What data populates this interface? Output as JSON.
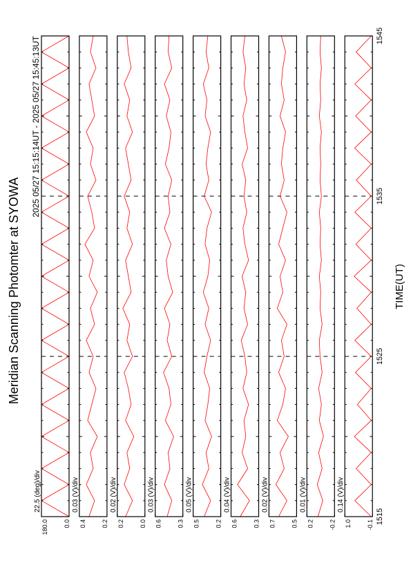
{
  "chart_data": {
    "type": "line",
    "title": "Meridian Scanning Photomter at SYOWA",
    "subtitle": "2025 05/27 15:15:14UT - 2025 05/27 15:45:13UT",
    "x_label": "TIME(UT)",
    "xlim": [
      1515,
      1545
    ],
    "xticks": [
      1515,
      1525,
      1535,
      1545
    ],
    "color": "#ff0000",
    "x": [
      1515,
      1516,
      1517,
      1518,
      1519,
      1520,
      1521,
      1522,
      1523,
      1524,
      1525,
      1526,
      1527,
      1528,
      1529,
      1530,
      1531,
      1532,
      1533,
      1534,
      1535,
      1536,
      1537,
      1538,
      1539,
      1540,
      1541,
      1542,
      1543,
      1544,
      1545
    ],
    "panels": [
      {
        "scale_label": "22.5 (deg)/div",
        "ylim": [
          0,
          180
        ],
        "yticks": [
          {
            "value": 0,
            "label": "0.0"
          },
          {
            "value": 180,
            "label": "180.0"
          }
        ],
        "values": [
          0,
          180,
          0,
          180,
          0,
          180,
          0,
          180,
          0,
          180,
          0,
          180,
          0,
          180,
          0,
          180,
          0,
          180,
          0,
          180,
          0,
          180,
          0,
          180,
          0,
          180,
          0,
          180,
          0,
          180,
          0
        ]
      },
      {
        "scale_label": "0.03 (V)/div",
        "ylim": [
          0.2,
          0.4
        ],
        "yticks": [
          0.2,
          0.4
        ],
        "values": [
          0.33,
          0.29,
          0.35,
          0.3,
          0.32,
          0.27,
          0.34,
          0.31,
          0.28,
          0.33,
          0.3,
          0.35,
          0.29,
          0.32,
          0.27,
          0.33,
          0.3,
          0.36,
          0.29,
          0.31,
          0.34,
          0.28,
          0.32,
          0.3,
          0.35,
          0.29,
          0.31,
          0.33,
          0.28,
          0.32,
          0.3
        ]
      },
      {
        "scale_label": "0.02 (V)/div",
        "ylim": [
          0.0,
          0.2
        ],
        "yticks": [
          {
            "value": 0,
            "label": "0.0"
          },
          0.2
        ],
        "values": [
          0.14,
          0.09,
          0.15,
          0.11,
          0.13,
          0.08,
          0.14,
          0.1,
          0.12,
          0.15,
          0.09,
          0.13,
          0.11,
          0.16,
          0.1,
          0.12,
          0.14,
          0.09,
          0.13,
          0.11,
          0.15,
          0.1,
          0.12,
          0.14,
          0.09,
          0.13,
          0.11,
          0.15,
          0.1,
          0.12,
          0.13
        ]
      },
      {
        "scale_label": "0.03 (V)/div",
        "ylim": [
          0.3,
          0.6
        ],
        "yticks": [
          0.3,
          0.6
        ],
        "values": [
          0.47,
          0.42,
          0.5,
          0.44,
          0.46,
          0.4,
          0.49,
          0.43,
          0.45,
          0.51,
          0.42,
          0.47,
          0.44,
          0.5,
          0.41,
          0.46,
          0.48,
          0.43,
          0.5,
          0.44,
          0.46,
          0.42,
          0.49,
          0.45,
          0.43,
          0.48,
          0.44,
          0.5,
          0.42,
          0.46,
          0.45
        ]
      },
      {
        "scale_label": "0.05 (V)/div",
        "ylim": [
          0.2,
          0.5
        ],
        "yticks": [
          0.2,
          0.5
        ],
        "values": [
          0.38,
          0.31,
          0.4,
          0.33,
          0.36,
          0.3,
          0.37,
          0.34,
          0.32,
          0.38,
          0.35,
          0.31,
          0.37,
          0.33,
          0.39,
          0.34,
          0.32,
          0.37,
          0.35,
          0.3,
          0.38,
          0.33,
          0.36,
          0.34,
          0.31,
          0.37,
          0.35,
          0.39,
          0.33,
          0.36,
          0.34
        ]
      },
      {
        "scale_label": "0.04 (V)/div",
        "ylim": [
          0.3,
          0.6
        ],
        "yticks": [
          0.3,
          0.6
        ],
        "values": [
          0.5,
          0.4,
          0.53,
          0.42,
          0.48,
          0.44,
          0.46,
          0.41,
          0.47,
          0.43,
          0.45,
          0.49,
          0.42,
          0.46,
          0.44,
          0.48,
          0.41,
          0.45,
          0.47,
          0.43,
          0.46,
          0.44,
          0.48,
          0.42,
          0.45,
          0.47,
          0.43,
          0.46,
          0.44,
          0.47,
          0.45
        ]
      },
      {
        "scale_label": "0.02 (V)/div",
        "ylim": [
          0.5,
          0.7
        ],
        "yticks": [
          0.5,
          0.7
        ],
        "values": [
          0.63,
          0.57,
          0.65,
          0.59,
          0.62,
          0.56,
          0.64,
          0.6,
          0.58,
          0.63,
          0.59,
          0.61,
          0.57,
          0.64,
          0.6,
          0.62,
          0.58,
          0.63,
          0.6,
          0.57,
          0.62,
          0.59,
          0.61,
          0.6,
          0.58,
          0.62,
          0.59,
          0.61,
          0.6,
          0.58,
          0.61
        ]
      },
      {
        "scale_label": "0.01 (V)/div",
        "ylim": [
          -0.2,
          0.2
        ],
        "yticks": [
          -0.2,
          0.2
        ],
        "values": [
          0.04,
          -0.03,
          0.05,
          -0.02,
          0.03,
          -0.04,
          0.02,
          -0.01,
          0.03,
          -0.02,
          0.01,
          0.02,
          -0.02,
          0.01,
          0.0,
          0.02,
          -0.01,
          0.01,
          0.0,
          0.02,
          -0.01,
          0.01,
          0.0,
          0.01,
          -0.01,
          0.02,
          0.0,
          0.01,
          -0.01,
          0.01,
          0.0
        ]
      },
      {
        "scale_label": "0.14 (V)/div",
        "ylim": [
          -0.1,
          1.0
        ],
        "yticks": [
          -0.1,
          {
            "value": 1,
            "label": "1.0"
          }
        ],
        "values": [
          -0.05,
          0.6,
          -0.05,
          0.55,
          -0.05,
          0.62,
          -0.05,
          0.5,
          -0.05,
          0.58,
          -0.05,
          0.6,
          -0.05,
          0.52,
          -0.05,
          0.63,
          -0.05,
          0.56,
          -0.05,
          0.6,
          -0.05,
          0.54,
          -0.05,
          0.61,
          -0.05,
          0.57,
          -0.05,
          0.6,
          -0.05,
          0.55,
          -0.05
        ]
      }
    ]
  }
}
